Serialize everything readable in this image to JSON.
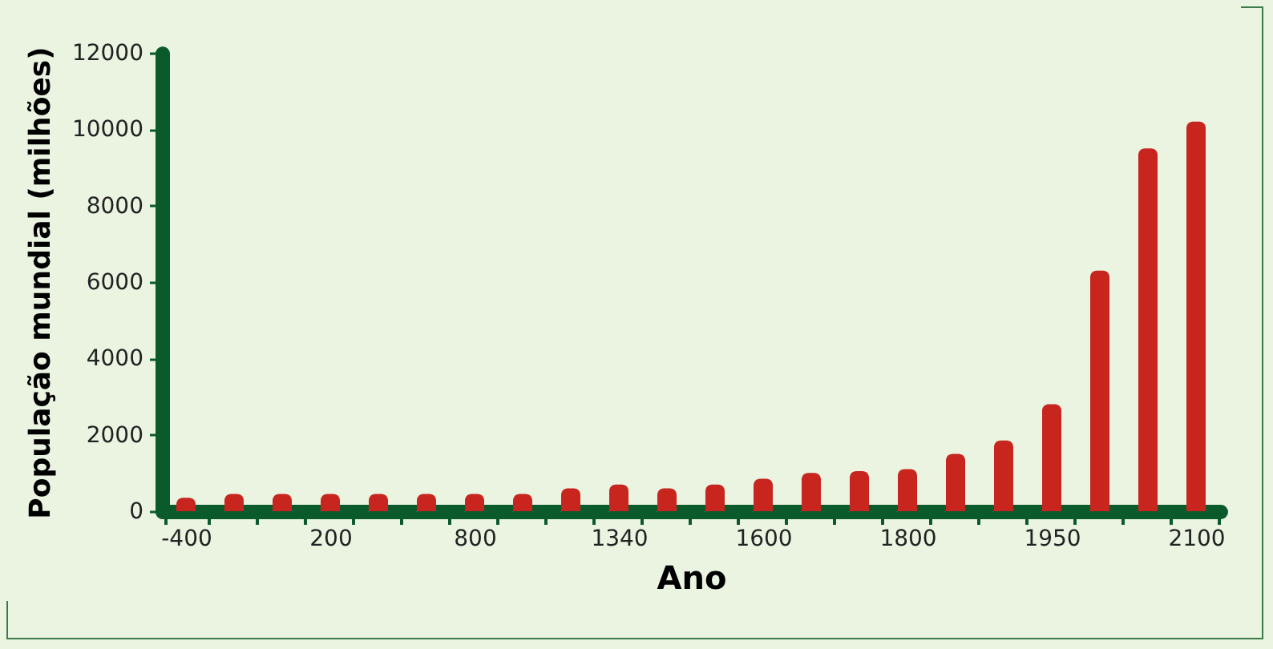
{
  "chart_data": {
    "type": "bar",
    "xlabel": "Ano",
    "ylabel": "População mundial (milhões)",
    "categories": [
      "-400",
      null,
      null,
      "200",
      null,
      null,
      "800",
      null,
      null,
      "1340",
      null,
      null,
      "1600",
      null,
      null,
      "1800",
      null,
      null,
      "1950",
      null,
      null,
      "2100"
    ],
    "series": [
      {
        "color": "#c8251f",
        "values": [
          350,
          450,
          450,
          450,
          450,
          450,
          450,
          450,
          600,
          700,
          600,
          700,
          850,
          1000,
          1050,
          1100,
          1500,
          1850,
          2800,
          6300,
          9500,
          10200
        ]
      }
    ],
    "ylim": [
      0,
      12000
    ],
    "yticks": [
      0,
      2000,
      4000,
      6000,
      8000,
      10000,
      12000
    ],
    "grid": false,
    "legend": false
  }
}
